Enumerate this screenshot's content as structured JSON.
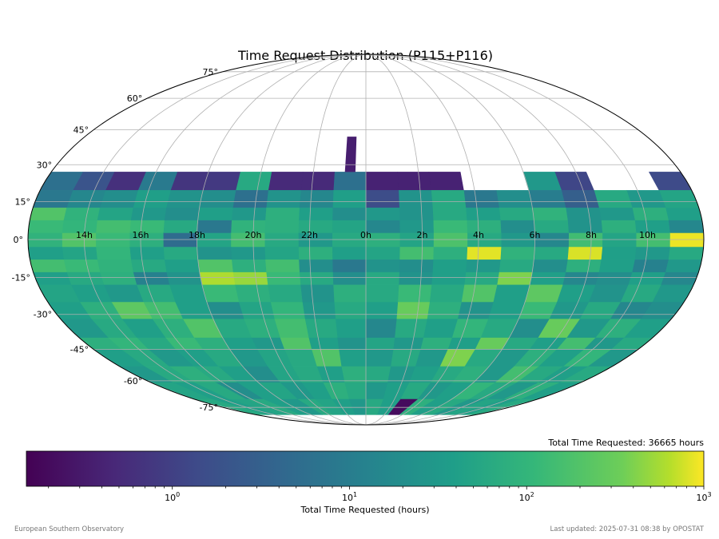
{
  "chart_data": {
    "type": "heatmap",
    "projection": "mollweide",
    "title": "Time Request Distribution (P115+P116)",
    "annotation": "Total Time Requested: 36665 hours",
    "colorbar": {
      "label": "Total Time Requested (hours)",
      "scale": "log",
      "range": [
        0.15,
        1000
      ],
      "colormap": "viridis",
      "tick_labels": [
        "10^0",
        "10^1",
        "10^2",
        "10^3"
      ],
      "tick_values": [
        1,
        10,
        100,
        1000
      ]
    },
    "ra_tick_labels": [
      "10h",
      "8h",
      "6h",
      "4h",
      "2h",
      "0h",
      "22h",
      "20h",
      "18h",
      "16h",
      "14h"
    ],
    "dec_tick_labels": [
      "75°",
      "60°",
      "45°",
      "30°",
      "15°",
      "0°",
      "-15°",
      "-30°",
      "-45°",
      "-60°",
      "-75°"
    ],
    "dec_bins": [
      27,
      19.5,
      12.5,
      7.5,
      2.5,
      -3,
      -8,
      -13,
      -18,
      -25,
      -32,
      -40,
      -45,
      -53,
      -61,
      -70,
      -80
    ],
    "grid": true,
    "cells": [
      [
        1.4,
        0,
        0,
        1.2,
        30,
        0,
        0,
        0.4,
        0.4,
        0.4,
        6,
        0.5,
        0.5,
        60,
        0.8,
        0.7,
        9,
        0.6,
        2,
        6
      ],
      [
        50,
        30,
        60,
        3,
        10,
        20,
        8,
        60,
        25,
        1.5,
        40,
        15,
        25,
        6,
        20,
        25,
        40,
        20,
        15,
        8
      ],
      [
        40,
        80,
        30,
        25,
        90,
        60,
        40,
        60,
        25,
        30,
        20,
        40,
        80,
        30,
        40,
        20,
        30,
        50,
        90,
        200
      ],
      [
        15,
        40,
        80,
        25,
        60,
        20,
        80,
        120,
        30,
        15,
        50,
        60,
        80,
        90,
        8,
        60,
        120,
        150,
        100,
        120
      ],
      [
        900,
        150,
        50,
        140,
        15,
        30,
        60,
        180,
        50,
        80,
        60,
        30,
        60,
        150,
        50,
        5,
        80,
        120,
        200,
        90
      ],
      [
        60,
        30,
        40,
        800,
        60,
        90,
        850,
        80,
        150,
        50,
        40,
        80,
        50,
        30,
        25,
        60,
        40,
        100,
        50,
        40
      ],
      [
        30,
        12,
        40,
        80,
        20,
        60,
        30,
        40,
        20,
        25,
        8,
        20,
        150,
        80,
        200,
        40,
        60,
        90,
        120,
        150
      ],
      [
        15,
        40,
        20,
        15,
        40,
        400,
        60,
        40,
        25,
        60,
        20,
        60,
        120,
        500,
        600,
        25,
        12,
        80,
        60,
        40
      ],
      [
        30,
        60,
        25,
        40,
        250,
        40,
        200,
        60,
        120,
        60,
        80,
        25,
        60,
        80,
        120,
        40,
        60,
        30,
        40,
        50
      ],
      [
        20,
        15,
        60,
        30,
        120,
        40,
        25,
        80,
        300,
        40,
        60,
        30,
        100,
        50,
        20,
        40,
        150,
        250,
        80,
        40
      ],
      [
        40,
        80,
        30,
        300,
        20,
        60,
        100,
        40,
        60,
        15,
        40,
        60,
        150,
        80,
        60,
        200,
        80,
        40,
        60,
        30
      ],
      [
        60,
        30,
        150,
        40,
        60,
        300,
        40,
        80,
        30,
        50,
        25,
        40,
        200,
        30,
        40,
        80,
        120,
        60,
        100,
        80
      ],
      [
        30,
        100,
        40,
        80,
        30,
        60,
        400,
        30,
        60,
        30,
        40,
        200,
        60,
        50,
        30,
        60,
        40,
        30,
        60,
        40
      ],
      [
        60,
        40,
        60,
        150,
        30,
        80,
        60,
        40,
        30,
        60,
        80,
        40,
        60,
        50,
        20,
        40,
        60,
        80,
        60,
        30
      ],
      [
        40,
        80,
        30,
        60,
        100,
        40,
        30,
        60,
        40,
        30,
        60,
        80,
        40,
        30,
        50,
        40,
        20,
        60,
        40,
        50
      ],
      [
        60,
        40,
        50,
        30,
        60,
        40,
        80,
        0.2,
        40,
        60,
        30,
        40,
        50,
        60,
        30,
        40,
        60,
        50,
        40,
        60
      ]
    ]
  },
  "footer": {
    "left": "European Southern Observatory",
    "right": "Last updated: 2025-07-31 08:38 by OPOSTAT"
  }
}
